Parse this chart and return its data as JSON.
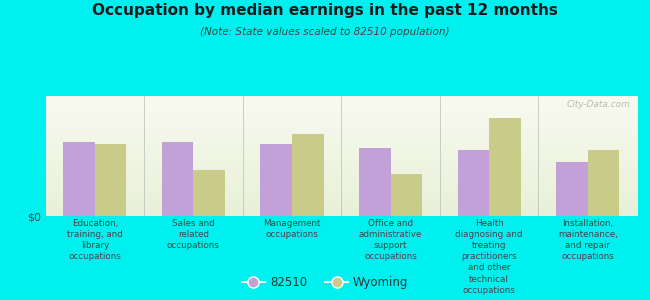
{
  "title": "Occupation by median earnings in the past 12 months",
  "subtitle": "(Note: State values scaled to 82510 population)",
  "background_color": "#00f0f0",
  "plot_bg_top": "#e8f0d8",
  "plot_bg_bottom": "#f8faf0",
  "categories": [
    "Education,\ntraining, and\nlibrary\noccupations",
    "Sales and\nrelated\noccupations",
    "Management\noccupations",
    "Office and\nadministrative\nsupport\noccupations",
    "Health\ndiagnosing and\ntreating\npractitioners\nand other\ntechnical\noccupations",
    "Installation,\nmaintenance,\nand repair\noccupations"
  ],
  "values_82510": [
    0.62,
    0.62,
    0.6,
    0.57,
    0.55,
    0.45
  ],
  "values_wyoming": [
    0.6,
    0.38,
    0.68,
    0.35,
    0.82,
    0.55
  ],
  "color_82510": "#c4a0d8",
  "color_wyoming": "#c8cc88",
  "bar_width": 0.32,
  "ylabel": "$0",
  "legend_labels": [
    "82510",
    "Wyoming"
  ],
  "watermark": "City-Data.com",
  "title_color": "#1a1a1a",
  "subtitle_color": "#444444",
  "tick_color": "#444444"
}
